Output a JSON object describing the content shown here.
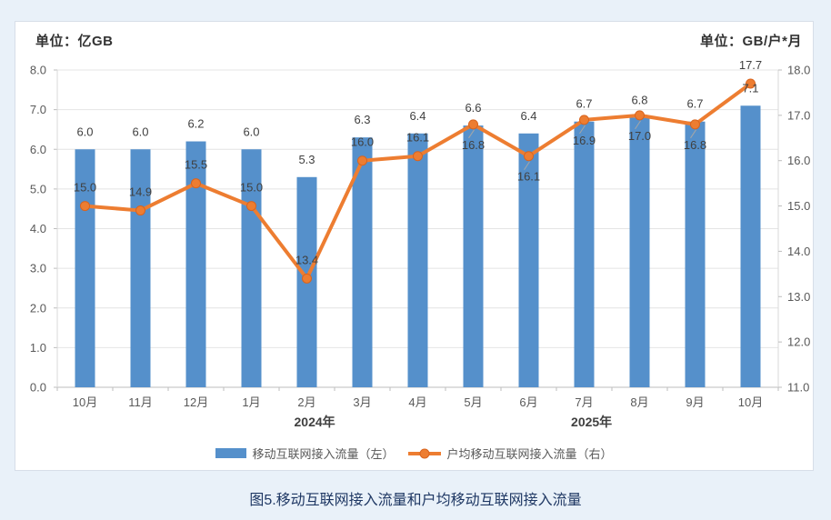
{
  "units": {
    "left": "单位：亿GB",
    "right": "单位：GB/户*月"
  },
  "caption": "图5.移动互联网接入流量和户均移动互联网接入流量",
  "colors": {
    "background": "#E9F1F9",
    "panel": "#FFFFFF",
    "panel_border": "#D7DEE8",
    "bar": "#5590CB",
    "line": "#ED7D31",
    "marker_stroke": "#D9641E",
    "grid": "#E4E4E4",
    "axis": "#BDBDBD",
    "side_axis": "#D9D9D9",
    "tick_text": "#595959",
    "data_label": "#404040",
    "year_text": "#404040",
    "legend_text": "#595959",
    "caption_text": "#1F3864",
    "leader": "#A6A6A6"
  },
  "chart_data": {
    "type": "combo",
    "categories": [
      "10月",
      "11月",
      "12月",
      "1月",
      "2月",
      "3月",
      "4月",
      "5月",
      "6月",
      "7月",
      "8月",
      "9月",
      "10月"
    ],
    "year_groups": [
      {
        "label": "2024年",
        "position": 0.357
      },
      {
        "label": "2025年",
        "position": 0.741
      }
    ],
    "left_axis": {
      "label": "单位：亿GB",
      "min": 0,
      "max": 8,
      "step": 1
    },
    "right_axis": {
      "label": "单位：GB/户*月",
      "min": 11,
      "max": 18,
      "step": 1
    },
    "grid": "horizontal",
    "legend_position": "bottom",
    "series": [
      {
        "name": "移动互联网接入流量（左）",
        "type": "bar",
        "axis": "left",
        "color": "#5590CB",
        "values": [
          6.0,
          6.0,
          6.2,
          6.0,
          5.3,
          6.3,
          6.4,
          6.6,
          6.4,
          6.7,
          6.8,
          6.7,
          7.1
        ]
      },
      {
        "name": "户均移动互联网接入流量（右）",
        "type": "line",
        "axis": "right",
        "color": "#ED7D31",
        "values": [
          15.0,
          14.9,
          15.5,
          15.0,
          13.4,
          16.0,
          16.1,
          16.8,
          16.1,
          16.9,
          17.0,
          16.8,
          17.7
        ],
        "label_side": [
          "above",
          "above",
          "above",
          "above",
          "above",
          "above",
          "above",
          "below",
          "below",
          "below",
          "below",
          "below",
          "above"
        ]
      }
    ]
  }
}
